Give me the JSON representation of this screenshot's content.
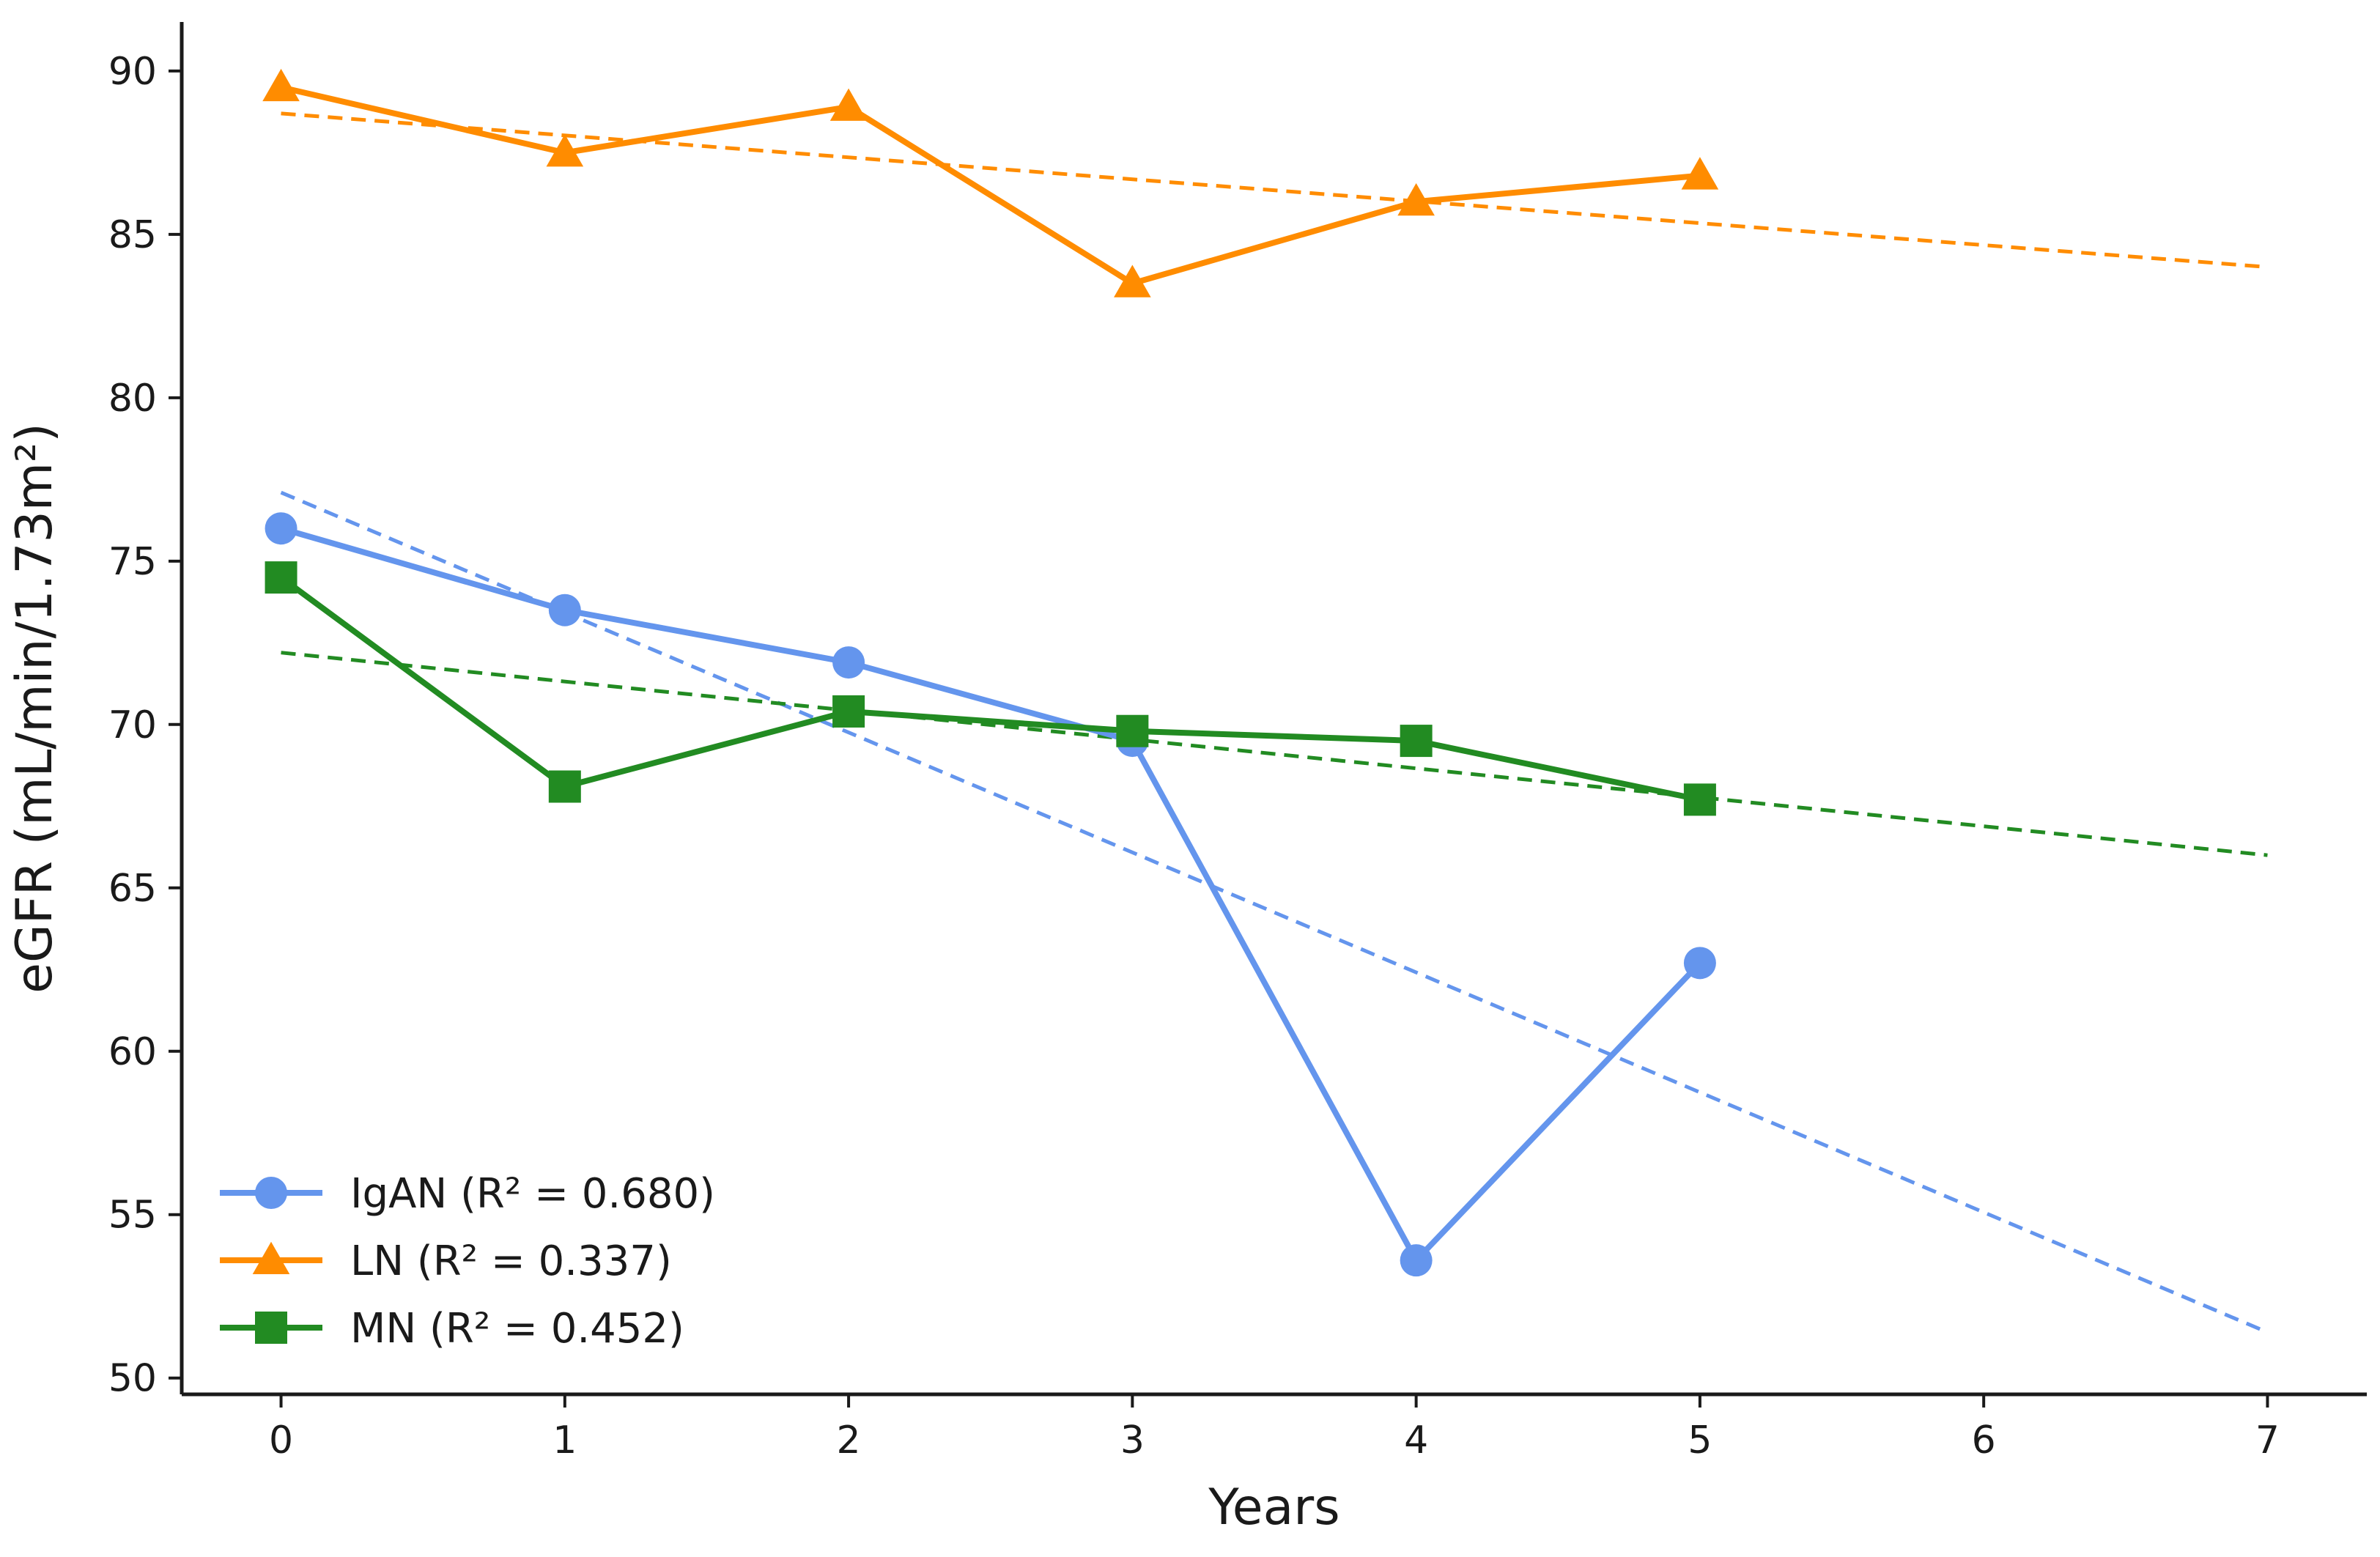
{
  "chart_data": {
    "type": "line",
    "title": "",
    "xlabel": "Years",
    "ylabel": "eGFR (mL/min/1.73m²)",
    "xlim": [
      -0.35,
      7.35
    ],
    "ylim": [
      49.5,
      91.5
    ],
    "xticks": [
      0,
      1,
      2,
      3,
      4,
      5,
      6,
      7
    ],
    "yticks": [
      50,
      55,
      60,
      65,
      70,
      75,
      80,
      85,
      90
    ],
    "grid": false,
    "legend_position": "lower-left",
    "series": [
      {
        "name": "IgAN",
        "legend_label": "IgAN (R² = 0.680)",
        "color": "#6495ED",
        "marker": "circle",
        "x": [
          0,
          1,
          2,
          3,
          4,
          5
        ],
        "values": [
          76.0,
          73.5,
          71.9,
          69.5,
          53.6,
          62.7
        ],
        "trend": {
          "x": [
            0,
            7
          ],
          "values": [
            77.1,
            51.4
          ]
        }
      },
      {
        "name": "LN",
        "legend_label": "LN (R² = 0.337)",
        "color": "#FF8C00",
        "marker": "triangle",
        "x": [
          0,
          1,
          2,
          3,
          4,
          5
        ],
        "values": [
          89.5,
          87.5,
          88.9,
          83.5,
          86.0,
          86.8
        ],
        "trend": {
          "x": [
            0,
            7
          ],
          "values": [
            88.7,
            84.0
          ]
        }
      },
      {
        "name": "MN",
        "legend_label": "MN (R² = 0.452)",
        "color": "#228B22",
        "marker": "square",
        "x": [
          0,
          1,
          2,
          3,
          4,
          5
        ],
        "values": [
          74.5,
          68.1,
          70.4,
          69.8,
          69.5,
          67.7
        ],
        "trend": {
          "x": [
            0,
            7
          ],
          "values": [
            72.2,
            66.0
          ]
        }
      }
    ]
  }
}
